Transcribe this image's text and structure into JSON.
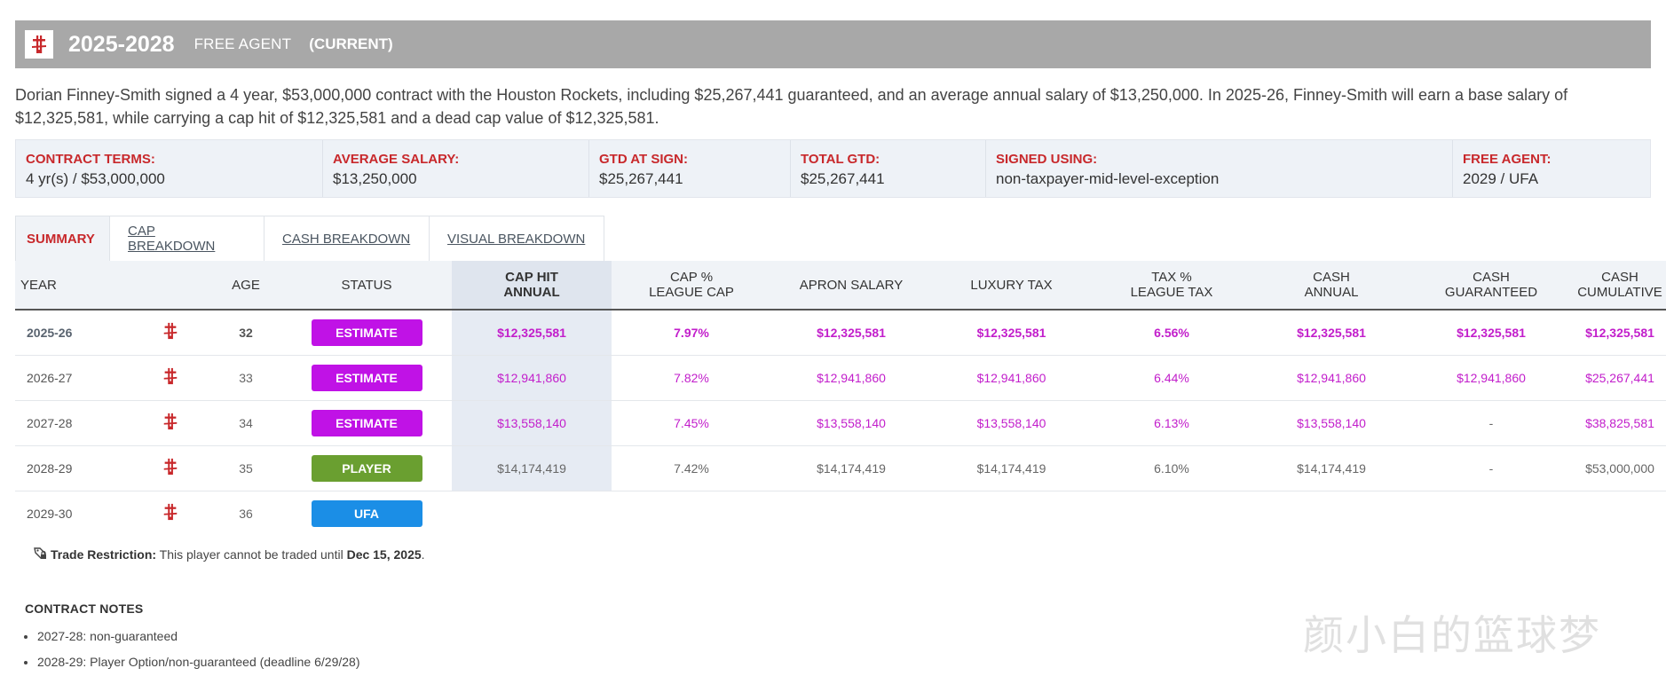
{
  "header": {
    "years": "2025-2028",
    "status": "FREE AGENT",
    "tag": "(CURRENT)"
  },
  "summary": "Dorian Finney-Smith signed a 4 year, $53,000,000 contract with the Houston Rockets, including $25,267,441 guaranteed, and an average annual salary of $13,250,000. In 2025-26, Finney-Smith will earn a base salary of $12,325,581, while carrying a cap hit of $12,325,581 and a dead cap value of $12,325,581.",
  "terms": [
    {
      "label": "CONTRACT TERMS:",
      "value": "4 yr(s) / $53,000,000"
    },
    {
      "label": "AVERAGE SALARY:",
      "value": "$13,250,000"
    },
    {
      "label": "GTD AT SIGN:",
      "value": "$25,267,441"
    },
    {
      "label": "TOTAL GTD:",
      "value": "$25,267,441"
    },
    {
      "label": "SIGNED USING:",
      "value": "non-taxpayer-mid-level-exception"
    },
    {
      "label": "FREE AGENT:",
      "value": "2029 / UFA"
    }
  ],
  "tabs": [
    "SUMMARY",
    "CAP BREAKDOWN",
    "CASH BREAKDOWN",
    "VISUAL BREAKDOWN"
  ],
  "table": {
    "headers": {
      "year": "YEAR",
      "age": "AGE",
      "status": "STATUS",
      "cap_hit_1": "CAP HIT",
      "cap_hit_2": "ANNUAL",
      "cap_pct_1": "CAP %",
      "cap_pct_2": "LEAGUE CAP",
      "apron": "APRON SALARY",
      "lux": "LUXURY TAX",
      "tax_pct_1": "TAX %",
      "tax_pct_2": "LEAGUE TAX",
      "cash_1": "CASH",
      "cash_2": "ANNUAL",
      "cash_gtd_1": "CASH",
      "cash_gtd_2": "GUARANTEED",
      "cash_cum_1": "CASH",
      "cash_cum_2": "CUMULATIVE"
    },
    "rows": [
      {
        "year": "2025-26",
        "age": "32",
        "status": "ESTIMATE",
        "cap_hit": "$12,325,581",
        "cap_pct": "7.97%",
        "apron": "$12,325,581",
        "lux": "$12,325,581",
        "tax_pct": "6.56%",
        "cash": "$12,325,581",
        "cash_gtd": "$12,325,581",
        "cash_cum": "$12,325,581"
      },
      {
        "year": "2026-27",
        "age": "33",
        "status": "ESTIMATE",
        "cap_hit": "$12,941,860",
        "cap_pct": "7.82%",
        "apron": "$12,941,860",
        "lux": "$12,941,860",
        "tax_pct": "6.44%",
        "cash": "$12,941,860",
        "cash_gtd": "$12,941,860",
        "cash_cum": "$25,267,441"
      },
      {
        "year": "2027-28",
        "age": "34",
        "status": "ESTIMATE",
        "cap_hit": "$13,558,140",
        "cap_pct": "7.45%",
        "apron": "$13,558,140",
        "lux": "$13,558,140",
        "tax_pct": "6.13%",
        "cash": "$13,558,140",
        "cash_gtd": "-",
        "cash_cum": "$38,825,581"
      },
      {
        "year": "2028-29",
        "age": "35",
        "status": "PLAYER",
        "cap_hit": "$14,174,419",
        "cap_pct": "7.42%",
        "apron": "$14,174,419",
        "lux": "$14,174,419",
        "tax_pct": "6.10%",
        "cash": "$14,174,419",
        "cash_gtd": "-",
        "cash_cum": "$53,000,000"
      },
      {
        "year": "2029-30",
        "age": "36",
        "status": "UFA"
      }
    ]
  },
  "colors": {
    "estimate": "#c012e6",
    "player": "#6a9f30",
    "ufa": "#1b8ee6",
    "magenta_text": "#c21ecb",
    "accent_red": "#c8282b"
  },
  "icons": {
    "team_logo": "rockets-logo-icon",
    "trade": "lock-tag-icon"
  },
  "trade_restriction": {
    "label": "Trade Restriction:",
    "text": " This player cannot be traded until ",
    "date": "Dec 15, 2025",
    "end": "."
  },
  "notes": {
    "title": "CONTRACT NOTES",
    "items": [
      "2027-28: non-guaranteed",
      "2028-29: Player Option/non-guaranteed (deadline 6/29/28)"
    ]
  },
  "watermark": "颜小白的篮球梦"
}
